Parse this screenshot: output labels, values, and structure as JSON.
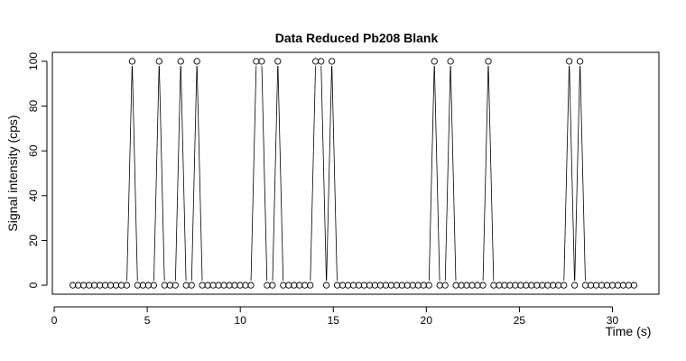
{
  "chart_data": {
    "type": "line",
    "title": "Data Reduced Pb208 Blank",
    "xlabel": "Time (s)",
    "ylabel": "Signal intensity (cps)",
    "xlim": [
      -0.1,
      32.5
    ],
    "ylim": [
      -4,
      104
    ],
    "xticks": [
      0,
      5,
      10,
      15,
      20,
      25,
      30
    ],
    "yticks": [
      0,
      20,
      40,
      60,
      80,
      100
    ],
    "grid": false,
    "legend": "none",
    "series": [
      {
        "markers": "open-circle",
        "line": true,
        "x": [
          1.0,
          1.29,
          1.58,
          1.87,
          2.16,
          2.45,
          2.74,
          3.03,
          3.32,
          3.61,
          3.9,
          4.19,
          4.48,
          4.77,
          5.06,
          5.35,
          5.64,
          5.93,
          6.22,
          6.51,
          6.8,
          7.09,
          7.38,
          7.67,
          7.96,
          8.25,
          8.54,
          8.83,
          9.12,
          9.41,
          9.7,
          9.99,
          10.28,
          10.57,
          10.86,
          11.15,
          11.44,
          11.73,
          12.02,
          12.31,
          12.6,
          12.89,
          13.18,
          13.47,
          13.76,
          14.05,
          14.34,
          14.63,
          14.92,
          15.21,
          15.5,
          15.79,
          16.08,
          16.37,
          16.66,
          16.95,
          17.24,
          17.53,
          17.82,
          18.11,
          18.4,
          18.69,
          18.98,
          19.27,
          19.56,
          19.85,
          20.14,
          20.43,
          20.72,
          21.01,
          21.3,
          21.59,
          21.88,
          22.17,
          22.46,
          22.75,
          23.04,
          23.33,
          23.62,
          23.91,
          24.2,
          24.49,
          24.78,
          25.07,
          25.36,
          25.65,
          25.94,
          26.23,
          26.52,
          26.81,
          27.1,
          27.39,
          27.68,
          27.97,
          28.26,
          28.55,
          28.84,
          29.13,
          29.42,
          29.71,
          30.0,
          30.29,
          30.58,
          30.87,
          31.16
        ],
        "y": [
          0,
          0,
          0,
          0,
          0,
          0,
          0,
          0,
          0,
          0,
          0,
          100,
          0,
          0,
          0,
          0,
          100,
          0,
          0,
          0,
          100,
          0,
          0,
          100,
          0,
          0,
          0,
          0,
          0,
          0,
          0,
          0,
          0,
          0,
          100,
          100,
          0,
          0,
          100,
          0,
          0,
          0,
          0,
          0,
          0,
          100,
          100,
          0,
          100,
          0,
          0,
          0,
          0,
          0,
          0,
          0,
          0,
          0,
          0,
          0,
          0,
          0,
          0,
          0,
          0,
          0,
          0,
          100,
          0,
          0,
          100,
          0,
          0,
          0,
          0,
          0,
          0,
          100,
          0,
          0,
          0,
          0,
          0,
          0,
          0,
          0,
          0,
          0,
          0,
          0,
          0,
          0,
          100,
          0,
          100,
          0,
          0,
          0,
          0,
          0,
          0,
          0,
          0,
          0,
          0
        ]
      }
    ]
  }
}
